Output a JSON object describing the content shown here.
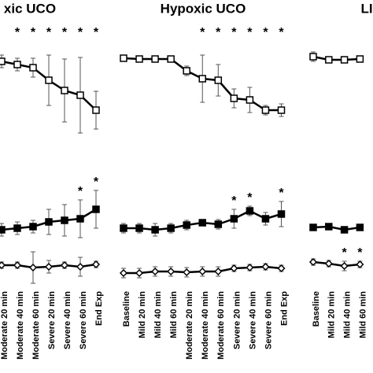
{
  "chart_data": [
    {
      "type": "line",
      "title": "xic UCO",
      "categories": [
        "Moderate 20 min",
        "Moderate 40 min",
        "Moderate 60 min",
        "Severe 20 min",
        "Severe 40 min",
        "Severe 60 min",
        "End Exp"
      ],
      "ylim": [
        0,
        100
      ],
      "series": [
        {
          "marker": "square-open",
          "color": "#000000",
          "values": [
            80.5,
            79.5,
            78.5,
            74.5,
            71.25,
            69.75,
            65
          ],
          "errors": [
            2,
            2,
            3,
            8,
            10,
            12,
            6
          ],
          "stars": [
            null,
            "*",
            "*",
            "*",
            "*",
            "*",
            "*"
          ]
        },
        {
          "marker": "square",
          "color": "#000000",
          "values": [
            27,
            27.5,
            28,
            29.5,
            30,
            30.5,
            33.5
          ],
          "errors": [
            2,
            2,
            2,
            4,
            5,
            6,
            6
          ],
          "stars": [
            null,
            null,
            null,
            null,
            null,
            "*",
            "*"
          ]
        },
        {
          "marker": "diamond-open",
          "color": "#000000",
          "values": [
            15.75,
            15.75,
            15,
            15.25,
            15.75,
            15.25,
            16
          ],
          "errors": [
            1,
            1,
            5,
            2,
            1,
            3,
            1
          ],
          "stars": [
            null,
            null,
            null,
            null,
            null,
            null,
            null
          ]
        }
      ]
    },
    {
      "type": "line",
      "title": "Hypoxic UCO",
      "categories": [
        "Baseline",
        "Mild 20 min",
        "Mild 40 min",
        "Mild 60 min",
        "Moderate 20 min",
        "Moderate 40 min",
        "Moderate 60 min",
        "Severe 20 min",
        "Severe 40 min",
        "Severe 60 min",
        "End Exp"
      ],
      "ylim": [
        0,
        100
      ],
      "series": [
        {
          "marker": "square-open",
          "color": "#000000",
          "values": [
            81.5,
            81.25,
            81.25,
            81.25,
            77.5,
            75,
            74.5,
            68.75,
            68.25,
            65,
            65
          ],
          "errors": [
            1,
            0.75,
            0.75,
            0.75,
            1.5,
            7.5,
            5,
            3,
            4,
            1.5,
            2
          ],
          "stars": [
            null,
            null,
            null,
            null,
            null,
            "*",
            "*",
            "*",
            "*",
            "*",
            "*"
          ]
        },
        {
          "marker": "square",
          "color": "#000000",
          "values": [
            27.5,
            27.5,
            27,
            27.5,
            28.5,
            29.25,
            28.75,
            30.5,
            33,
            30.5,
            32
          ],
          "errors": [
            1.5,
            1.5,
            2,
            1.5,
            1.5,
            1,
            1.5,
            3,
            1.5,
            2,
            4
          ],
          "stars": [
            null,
            null,
            null,
            null,
            null,
            null,
            null,
            "*",
            "*",
            null,
            "*"
          ]
        },
        {
          "marker": "diamond-open",
          "color": "#000000",
          "values": [
            13.25,
            13.25,
            13.75,
            13.75,
            13.5,
            13.75,
            13.75,
            14.75,
            15,
            15.25,
            14.75
          ],
          "errors": [
            1.5,
            1.5,
            1.5,
            1.5,
            1.5,
            1.5,
            1.5,
            1,
            1,
            1,
            1
          ],
          "stars": [
            null,
            null,
            null,
            null,
            null,
            null,
            null,
            null,
            null,
            null,
            null
          ]
        }
      ]
    },
    {
      "type": "line",
      "title": "LI",
      "categories": [
        "Baseline",
        "Mild 20 min",
        "Mild 40 min",
        "Mild 60 min"
      ],
      "ylim": [
        0,
        100
      ],
      "series": [
        {
          "marker": "square-open",
          "color": "#000000",
          "values": [
            82,
            81,
            81,
            81.25
          ],
          "errors": [
            1.5,
            1,
            1,
            1
          ],
          "stars": [
            null,
            null,
            null,
            null
          ]
        },
        {
          "marker": "square",
          "color": "#000000",
          "values": [
            27.75,
            28,
            27,
            27.75
          ],
          "errors": [
            1,
            1,
            1,
            1
          ],
          "stars": [
            null,
            null,
            null,
            null
          ]
        },
        {
          "marker": "diamond-open",
          "color": "#000000",
          "values": [
            16.75,
            16.25,
            15.5,
            16
          ],
          "errors": [
            1,
            1,
            1.5,
            1
          ],
          "stars": [
            null,
            null,
            "*",
            "*"
          ]
        }
      ]
    }
  ]
}
